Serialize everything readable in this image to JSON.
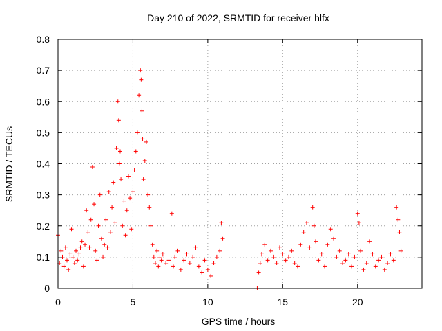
{
  "chart_data": {
    "type": "scatter",
    "title": "Day 210 of 2022, SRMTID for receiver hlfx",
    "xlabel": "GPS time / hours",
    "ylabel": "SRMTID / TECUs",
    "xlim": [
      0,
      24.3
    ],
    "ylim": [
      0,
      0.8
    ],
    "xticks": [
      0,
      5,
      10,
      15,
      20
    ],
    "xtick_labels": [
      "0",
      "5",
      "10",
      "15",
      "20"
    ],
    "yticks": [
      0,
      0.1,
      0.2,
      0.3,
      0.4,
      0.5,
      0.6,
      0.7,
      0.8
    ],
    "ytick_labels": [
      "0",
      "0.1",
      "0.2",
      "0.3",
      "0.4",
      "0.5",
      "0.6",
      "0.7",
      "0.8"
    ],
    "grid": true,
    "marker": "plus",
    "color": "#ff0000",
    "series": [
      {
        "name": "SRMTID",
        "x": [
          0.0,
          0.1,
          0.2,
          0.3,
          0.4,
          0.5,
          0.6,
          0.7,
          0.8,
          0.9,
          1.0,
          1.1,
          1.2,
          1.3,
          1.4,
          1.5,
          1.6,
          1.7,
          1.8,
          1.9,
          2.0,
          2.1,
          2.2,
          2.3,
          2.4,
          2.5,
          2.6,
          2.7,
          2.8,
          2.9,
          3.0,
          3.1,
          3.2,
          3.3,
          3.4,
          3.5,
          3.6,
          3.7,
          3.8,
          3.9,
          4.0,
          4.05,
          4.1,
          4.15,
          4.2,
          4.3,
          4.4,
          4.5,
          4.6,
          4.7,
          4.8,
          4.9,
          5.0,
          5.1,
          5.2,
          5.3,
          5.4,
          5.5,
          5.55,
          5.6,
          5.65,
          5.7,
          5.8,
          5.9,
          6.0,
          6.1,
          6.2,
          6.3,
          6.4,
          6.5,
          6.6,
          6.7,
          6.8,
          6.9,
          7.0,
          7.2,
          7.4,
          7.6,
          7.7,
          7.8,
          8.0,
          8.2,
          8.4,
          8.6,
          8.8,
          9.0,
          9.2,
          9.4,
          9.6,
          9.8,
          10.0,
          10.2,
          10.4,
          10.6,
          10.8,
          10.9,
          11.0,
          13.3,
          13.4,
          13.5,
          13.6,
          13.8,
          14.0,
          14.2,
          14.4,
          14.6,
          14.8,
          15.0,
          15.2,
          15.4,
          15.6,
          15.8,
          16.0,
          16.2,
          16.4,
          16.6,
          16.8,
          17.0,
          17.1,
          17.2,
          17.4,
          17.6,
          17.8,
          18.0,
          18.2,
          18.4,
          18.6,
          18.8,
          19.0,
          19.2,
          19.4,
          19.6,
          19.8,
          20.0,
          20.1,
          20.2,
          20.4,
          20.6,
          20.8,
          21.0,
          21.2,
          21.4,
          21.6,
          21.8,
          22.0,
          22.2,
          22.4,
          22.6,
          22.7,
          22.8,
          22.9
        ],
        "y": [
          0.17,
          0.08,
          0.12,
          0.1,
          0.07,
          0.13,
          0.09,
          0.06,
          0.11,
          0.19,
          0.1,
          0.08,
          0.12,
          0.09,
          0.11,
          0.13,
          0.15,
          0.07,
          0.14,
          0.25,
          0.18,
          0.13,
          0.22,
          0.39,
          0.27,
          0.12,
          0.09,
          0.2,
          0.3,
          0.16,
          0.1,
          0.14,
          0.22,
          0.13,
          0.31,
          0.18,
          0.26,
          0.34,
          0.21,
          0.45,
          0.6,
          0.54,
          0.4,
          0.44,
          0.35,
          0.2,
          0.28,
          0.17,
          0.25,
          0.36,
          0.29,
          0.19,
          0.31,
          0.38,
          0.44,
          0.5,
          0.62,
          0.7,
          0.67,
          0.57,
          0.48,
          0.35,
          0.41,
          0.47,
          0.3,
          0.26,
          0.2,
          0.14,
          0.1,
          0.08,
          0.12,
          0.07,
          0.1,
          0.09,
          0.11,
          0.08,
          0.09,
          0.24,
          0.07,
          0.1,
          0.12,
          0.06,
          0.09,
          0.11,
          0.08,
          0.1,
          0.13,
          0.07,
          0.05,
          0.09,
          0.06,
          0.04,
          0.08,
          0.1,
          0.12,
          0.21,
          0.16,
          0.0,
          0.05,
          0.08,
          0.11,
          0.14,
          0.09,
          0.12,
          0.1,
          0.08,
          0.13,
          0.11,
          0.09,
          0.1,
          0.12,
          0.08,
          0.07,
          0.14,
          0.18,
          0.21,
          0.13,
          0.26,
          0.2,
          0.15,
          0.09,
          0.11,
          0.07,
          0.14,
          0.19,
          0.16,
          0.1,
          0.12,
          0.08,
          0.09,
          0.11,
          0.07,
          0.1,
          0.24,
          0.21,
          0.12,
          0.06,
          0.08,
          0.15,
          0.11,
          0.07,
          0.09,
          0.1,
          0.06,
          0.08,
          0.11,
          0.09,
          0.26,
          0.22,
          0.18,
          0.12
        ]
      }
    ]
  }
}
